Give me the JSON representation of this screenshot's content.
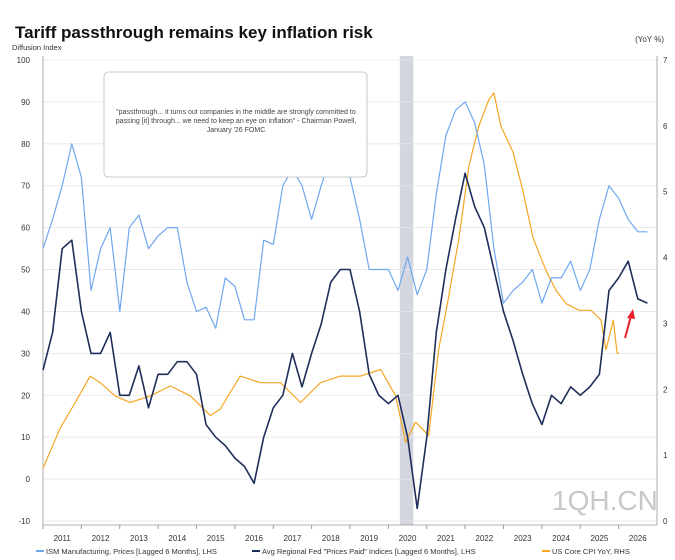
{
  "chart_data": {
    "type": "line",
    "title": "Tariff passthrough remains key inflation risk",
    "ylabel_left": "Diffusion Index",
    "ylabel_right": "(YoY %)",
    "ylim_left": [
      -10,
      100
    ],
    "ylim_right": [
      0,
      7
    ],
    "xlim": [
      2011,
      2027
    ],
    "yticks_left": [
      "100",
      "90",
      "80",
      "70",
      "60",
      "50",
      "40",
      "30",
      "20",
      "10",
      "0",
      "-10"
    ],
    "yticks_right": [
      "7",
      "6",
      "5",
      "4",
      "3",
      "2",
      "1",
      "0"
    ],
    "xticks": [
      "2011",
      "2012",
      "2013",
      "2014",
      "2015",
      "2016",
      "2017",
      "2018",
      "2019",
      "2020",
      "2021",
      "2022",
      "2023",
      "2024",
      "2025",
      "2026"
    ],
    "recession": [
      2020.3,
      2020.65
    ],
    "annotation": "\"passthrough... it turns out companies in the middle are strongly committed to passing [it] through... we need to keep an eye on inflation\" - Chairman Powell, January '26 FOMC",
    "watermark": "1QH.CN",
    "colors": {
      "ism": "#6fa8f0",
      "fed": "#1f2d5a",
      "cpi": "#f5a623",
      "arrow": "#e8202a",
      "recession": "#d3d6de"
    },
    "series": [
      {
        "name": "ISM Manufacturing, Prices [Lagged 6 Months], LHS",
        "axis": "left",
        "start": 2011.0,
        "step": 0.25,
        "values": [
          55,
          62,
          70,
          80,
          72,
          45,
          55,
          60,
          40,
          60,
          63,
          55,
          58,
          60,
          60,
          47,
          40,
          41,
          36,
          48,
          46,
          38,
          38,
          57,
          56,
          70,
          74,
          70,
          62,
          70,
          77,
          79,
          72,
          62,
          50,
          50,
          50,
          45,
          53,
          44,
          50,
          68,
          82,
          88,
          90,
          85,
          75,
          55,
          42,
          45,
          47,
          50,
          42,
          48,
          48,
          52,
          45,
          50,
          62,
          70,
          67,
          62,
          59,
          59
        ]
      },
      {
        "name": "Avg Regional Fed \"Prices Paid\" Indices [Lagged 6 Months], LHS",
        "axis": "left",
        "start": 2011.0,
        "step": 0.25,
        "values": [
          26,
          35,
          55,
          57,
          40,
          30,
          30,
          35,
          20,
          20,
          27,
          17,
          25,
          25,
          28,
          28,
          25,
          13,
          10,
          8,
          5,
          3,
          -1,
          10,
          17,
          20,
          30,
          22,
          30,
          37,
          47,
          50,
          50,
          40,
          25,
          20,
          18,
          20,
          10,
          -7,
          10,
          35,
          50,
          62,
          73,
          65,
          60,
          50,
          40,
          33,
          25,
          18,
          13,
          20,
          18,
          22,
          20,
          22,
          25,
          45,
          48,
          52,
          43,
          42
        ]
      },
      {
        "name": "US Core CPI YoY, RHS",
        "axis": "right",
        "points": [
          [
            2011.0,
            0.8
          ],
          [
            2011.44,
            1.4
          ],
          [
            2011.84,
            1.8
          ],
          [
            2012.23,
            2.2
          ],
          [
            2012.49,
            2.1
          ],
          [
            2012.88,
            1.9
          ],
          [
            2013.27,
            1.8
          ],
          [
            2013.79,
            1.9
          ],
          [
            2014.32,
            2.05
          ],
          [
            2014.84,
            1.9
          ],
          [
            2015.36,
            1.6
          ],
          [
            2015.62,
            1.7
          ],
          [
            2016.14,
            2.2
          ],
          [
            2016.67,
            2.1
          ],
          [
            2017.19,
            2.1
          ],
          [
            2017.71,
            1.8
          ],
          [
            2018.23,
            2.1
          ],
          [
            2018.75,
            2.2
          ],
          [
            2019.28,
            2.2
          ],
          [
            2019.8,
            2.3
          ],
          [
            2020.19,
            1.9
          ],
          [
            2020.45,
            1.2
          ],
          [
            2020.71,
            1.5
          ],
          [
            2021.05,
            1.3
          ],
          [
            2021.31,
            2.6
          ],
          [
            2021.57,
            3.4
          ],
          [
            2021.84,
            4.3
          ],
          [
            2022.1,
            5.4
          ],
          [
            2022.36,
            6.0
          ],
          [
            2022.62,
            6.4
          ],
          [
            2022.75,
            6.5
          ],
          [
            2022.93,
            6.0
          ],
          [
            2023.25,
            5.6
          ],
          [
            2023.51,
            5.0
          ],
          [
            2023.77,
            4.3
          ],
          [
            2024.11,
            3.8
          ],
          [
            2024.37,
            3.5
          ],
          [
            2024.63,
            3.3
          ],
          [
            2024.97,
            3.2
          ],
          [
            2025.28,
            3.2
          ],
          [
            2025.54,
            3.05
          ],
          [
            2025.67,
            2.6
          ],
          [
            2025.86,
            3.05
          ],
          [
            2025.96,
            2.55
          ],
          [
            2026.01,
            2.55
          ]
        ]
      }
    ]
  }
}
